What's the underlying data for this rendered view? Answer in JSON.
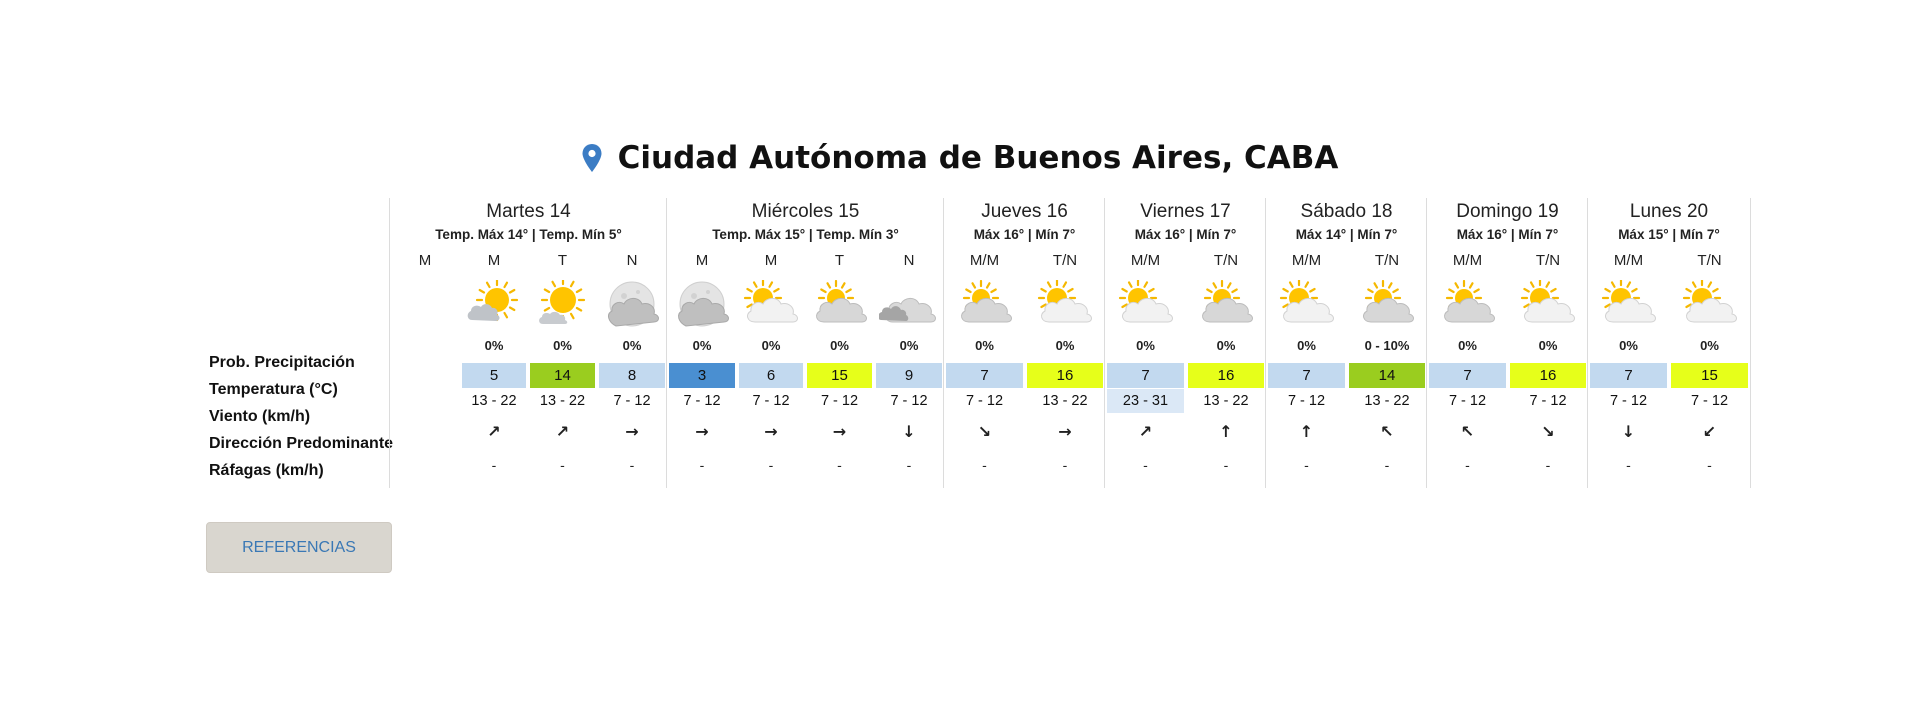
{
  "location": {
    "title": "Ciudad Autónoma de Buenos Aires, CABA",
    "pin_icon": "location-pin-icon",
    "pin_color": "#3b7cc4"
  },
  "row_labels": {
    "precip": "Prob. Precipitación",
    "temp": "Temperatura (°C)",
    "wind": "Viento (km/h)",
    "dir": "Dirección Predominante",
    "gust": "Ráfagas (km/h)"
  },
  "colors": {
    "cold": "#c2d9ef",
    "cool": "#4a8fd1",
    "mild": "#e6ff1a",
    "warm": "#9acd1f",
    "wind_hl": "#dbe8f6"
  },
  "days": [
    {
      "name": "Martes 14",
      "sub": "Temp. Máx 14° | Temp. Mín 5°",
      "periods": [
        {
          "label": "M",
          "icon": "",
          "prob": "",
          "temp": "",
          "temp_color": "",
          "wind": "",
          "dir": "",
          "dir_icon": "",
          "gust": ""
        },
        {
          "label": "M",
          "icon": "sun-behind-cloud-icon",
          "prob": "0%",
          "temp": "5",
          "temp_color": "#c2d9ef",
          "wind": "13 - 22",
          "dir": "↗",
          "dir_icon": "arrow-northeast-icon",
          "gust": "-"
        },
        {
          "label": "T",
          "icon": "sun-small-cloud-icon",
          "prob": "0%",
          "temp": "14",
          "temp_color": "#9acd1f",
          "wind": "13 - 22",
          "dir": "↗",
          "dir_icon": "arrow-northeast-icon",
          "gust": "-"
        },
        {
          "label": "N",
          "icon": "moon-cloud-icon",
          "prob": "0%",
          "temp": "8",
          "temp_color": "#c2d9ef",
          "wind": "7 - 12",
          "dir": "→",
          "dir_icon": "arrow-east-icon",
          "gust": "-"
        }
      ]
    },
    {
      "name": "Miércoles 15",
      "sub": "Temp. Máx 15° | Temp. Mín 3°",
      "periods": [
        {
          "label": "M",
          "icon": "moon-cloud-icon",
          "prob": "0%",
          "temp": "3",
          "temp_color": "#4a8fd1",
          "wind": "7 - 12",
          "dir": "→",
          "dir_icon": "arrow-east-icon",
          "gust": "-"
        },
        {
          "label": "M",
          "icon": "partly-cloudy-icon",
          "prob": "0%",
          "temp": "6",
          "temp_color": "#c2d9ef",
          "wind": "7 - 12",
          "dir": "→",
          "dir_icon": "arrow-east-icon",
          "gust": "-"
        },
        {
          "label": "T",
          "icon": "cloudy-sun-icon",
          "prob": "0%",
          "temp": "15",
          "temp_color": "#e6ff1a",
          "wind": "7 - 12",
          "dir": "→",
          "dir_icon": "arrow-east-icon",
          "gust": "-"
        },
        {
          "label": "N",
          "icon": "night-cloudy-icon",
          "prob": "0%",
          "temp": "9",
          "temp_color": "#c2d9ef",
          "wind": "7 - 12",
          "dir": "↓",
          "dir_icon": "arrow-south-icon",
          "gust": "-"
        }
      ]
    },
    {
      "name": "Jueves 16",
      "sub": "Máx 16° | Mín 7°",
      "periods": [
        {
          "label": "M/M",
          "icon": "cloudy-sun-icon",
          "prob": "0%",
          "temp": "7",
          "temp_color": "#c2d9ef",
          "wind": "7 - 12",
          "dir": "↘",
          "dir_icon": "arrow-southeast-icon",
          "gust": "-"
        },
        {
          "label": "T/N",
          "icon": "partly-cloudy-icon",
          "prob": "0%",
          "temp": "16",
          "temp_color": "#e6ff1a",
          "wind": "13 - 22",
          "dir": "→",
          "dir_icon": "arrow-east-icon",
          "gust": "-"
        }
      ]
    },
    {
      "name": "Viernes 17",
      "sub": "Máx 16° | Mín 7°",
      "periods": [
        {
          "label": "M/M",
          "icon": "partly-cloudy-icon",
          "prob": "0%",
          "temp": "7",
          "temp_color": "#c2d9ef",
          "wind": "23 - 31",
          "wind_hl": true,
          "dir": "↗",
          "dir_icon": "arrow-northeast-icon",
          "gust": "-"
        },
        {
          "label": "T/N",
          "icon": "cloudy-sun-icon",
          "prob": "0%",
          "temp": "16",
          "temp_color": "#e6ff1a",
          "wind": "13 - 22",
          "dir": "↑",
          "dir_icon": "arrow-north-icon",
          "gust": "-"
        }
      ]
    },
    {
      "name": "Sábado 18",
      "sub": "Máx 14° | Mín 7°",
      "periods": [
        {
          "label": "M/M",
          "icon": "partly-cloudy-icon",
          "prob": "0%",
          "temp": "7",
          "temp_color": "#c2d9ef",
          "wind": "7 - 12",
          "dir": "↑",
          "dir_icon": "arrow-north-icon",
          "gust": "-"
        },
        {
          "label": "T/N",
          "icon": "cloudy-sun-icon",
          "prob": "0 - 10%",
          "temp": "14",
          "temp_color": "#9acd1f",
          "wind": "13 - 22",
          "dir": "↖",
          "dir_icon": "arrow-northwest-icon",
          "gust": "-"
        }
      ]
    },
    {
      "name": "Domingo 19",
      "sub": "Máx 16° | Mín 7°",
      "periods": [
        {
          "label": "M/M",
          "icon": "cloudy-sun-icon",
          "prob": "0%",
          "temp": "7",
          "temp_color": "#c2d9ef",
          "wind": "7 - 12",
          "dir": "↖",
          "dir_icon": "arrow-northwest-icon",
          "gust": "-"
        },
        {
          "label": "T/N",
          "icon": "partly-cloudy-icon",
          "prob": "0%",
          "temp": "16",
          "temp_color": "#e6ff1a",
          "wind": "7 - 12",
          "dir": "↘",
          "dir_icon": "arrow-southeast-icon",
          "gust": "-"
        }
      ]
    },
    {
      "name": "Lunes 20",
      "sub": "Máx 15° | Mín 7°",
      "periods": [
        {
          "label": "M/M",
          "icon": "partly-cloudy-icon",
          "prob": "0%",
          "temp": "7",
          "temp_color": "#c2d9ef",
          "wind": "7 - 12",
          "dir": "↓",
          "dir_icon": "arrow-south-icon",
          "gust": "-"
        },
        {
          "label": "T/N",
          "icon": "partly-cloudy-icon",
          "prob": "0%",
          "temp": "15",
          "temp_color": "#e6ff1a",
          "wind": "7 - 12",
          "dir": "↙",
          "dir_icon": "arrow-southwest-icon",
          "gust": "-"
        }
      ]
    }
  ],
  "footer": {
    "references_label": "REFERENCIAS"
  }
}
